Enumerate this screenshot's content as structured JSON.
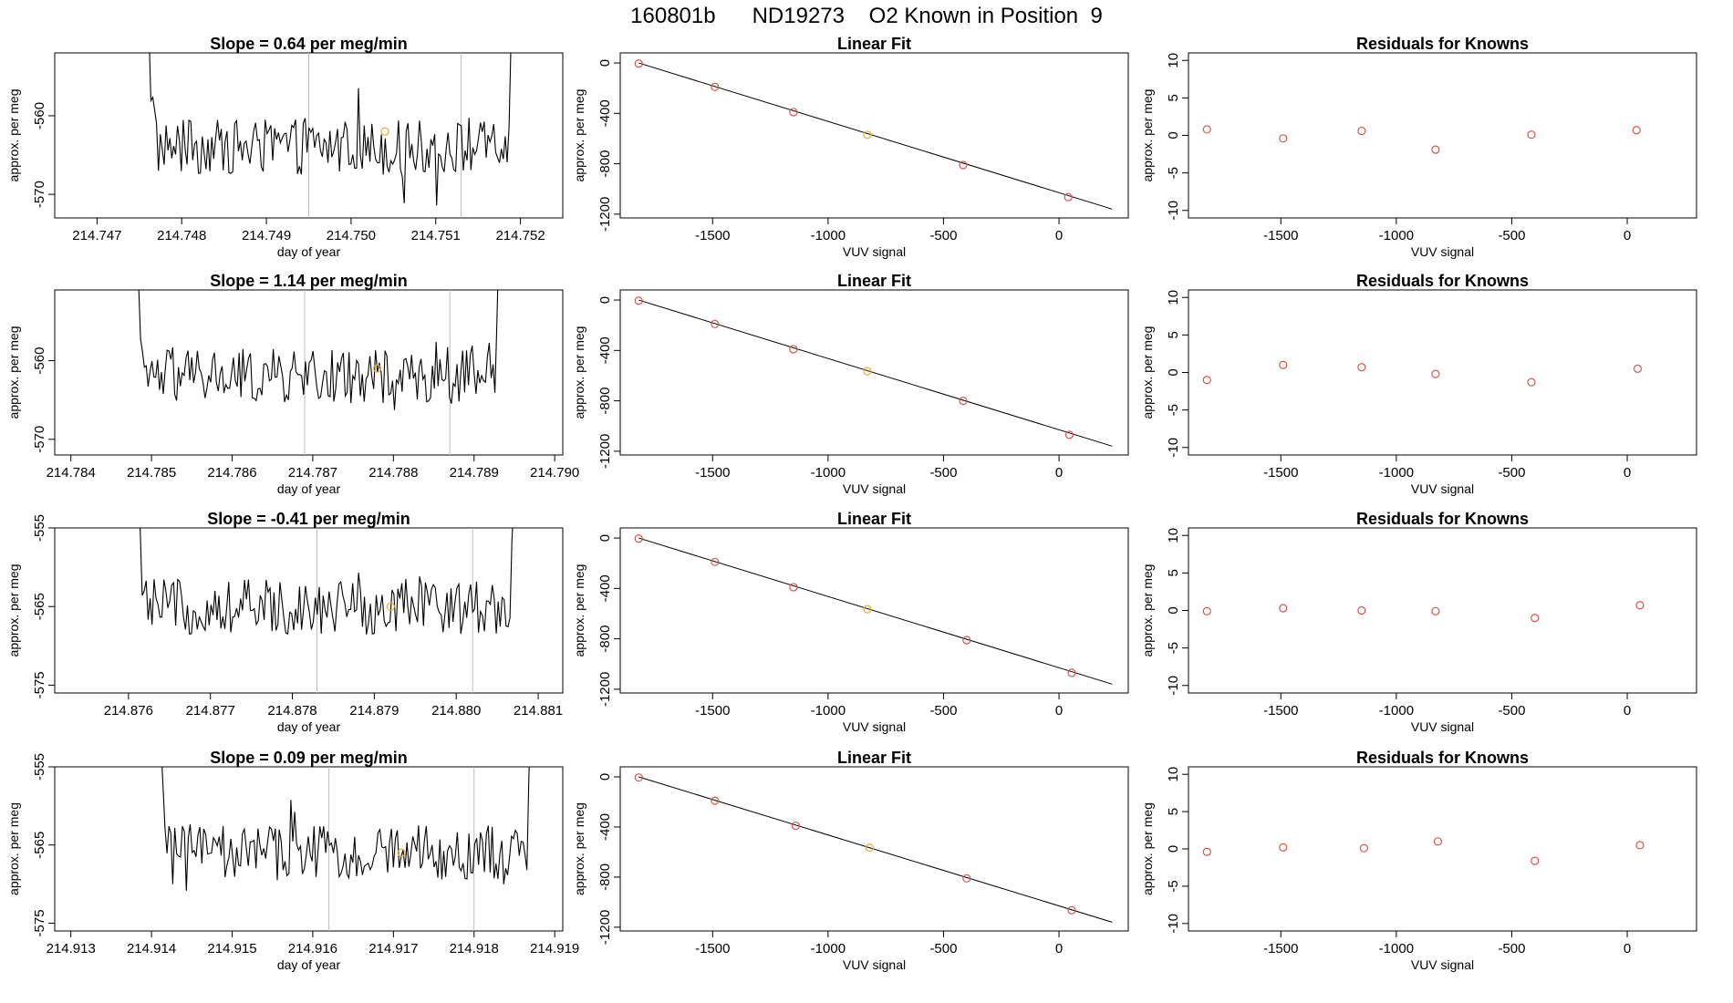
{
  "figure": {
    "title": "160801b      ND19273    O2 Known in Position  9",
    "colors": {
      "frame": "#000000",
      "line": "#000000",
      "point": "#d9534f",
      "highlight": "#f0a830",
      "vline": "#bdbdbd"
    }
  },
  "chart_data": [
    {
      "row": 0,
      "kind": "timeseries",
      "type": "line",
      "title": "Slope =  0.64  per meg/min",
      "xlabel": "day of year",
      "ylabel": "approx. per meg",
      "xlim": [
        214.7465,
        214.7525
      ],
      "ylim": [
        -573,
        -552
      ],
      "xticks": [
        214.747,
        214.748,
        214.749,
        214.75,
        214.751,
        214.752
      ],
      "xtick_labels": [
        "214.747",
        "214.748",
        "214.749",
        "214.750",
        "214.751",
        "214.752"
      ],
      "yticks": [
        -560,
        -570
      ],
      "ytick_labels": [
        "-560",
        "-570"
      ],
      "x_start": 214.7475,
      "x_end": 214.752,
      "center": -564,
      "vlines": [
        214.7495,
        214.7513
      ],
      "highlight_point": {
        "x": 214.7504,
        "y": -562
      }
    },
    {
      "row": 1,
      "kind": "timeseries",
      "type": "line",
      "title": "Slope =  1.14  per meg/min",
      "xlabel": "day of year",
      "ylabel": "approx. per meg",
      "xlim": [
        214.7838,
        214.7901
      ],
      "ylim": [
        -572,
        -551
      ],
      "xticks": [
        214.784,
        214.785,
        214.786,
        214.787,
        214.788,
        214.789,
        214.79
      ],
      "xtick_labels": [
        "214.784",
        "214.785",
        "214.786",
        "214.787",
        "214.788",
        "214.789",
        "214.790"
      ],
      "yticks": [
        -560,
        -570
      ],
      "ytick_labels": [
        "-560",
        "-570"
      ],
      "x_start": 214.7847,
      "x_end": 214.7894,
      "center": -562,
      "vlines": [
        214.7869,
        214.7887
      ],
      "highlight_point": {
        "x": 214.7878,
        "y": -561
      }
    },
    {
      "row": 2,
      "kind": "timeseries",
      "type": "line",
      "title": "Slope =  -0.41  per meg/min",
      "xlabel": "day of year",
      "ylabel": "approx. per meg",
      "xlim": [
        214.8751,
        214.8813
      ],
      "ylim": [
        -576,
        -555
      ],
      "xticks": [
        214.876,
        214.877,
        214.878,
        214.879,
        214.88,
        214.881
      ],
      "xtick_labels": [
        "214.876",
        "214.877",
        "214.878",
        "214.879",
        "214.880",
        "214.881"
      ],
      "yticks": [
        -555,
        -565,
        -575
      ],
      "ytick_labels": [
        "-555",
        "-565",
        "-575"
      ],
      "x_start": 214.876,
      "x_end": 214.8808,
      "center": -565,
      "vlines": [
        214.8783,
        214.8802
      ],
      "highlight_point": {
        "x": 214.8792,
        "y": -565
      }
    },
    {
      "row": 3,
      "kind": "timeseries",
      "type": "line",
      "title": "Slope =  0.09  per meg/min",
      "xlabel": "day of year",
      "ylabel": "approx. per meg",
      "xlim": [
        214.9128,
        214.9191
      ],
      "ylim": [
        -576,
        -555
      ],
      "xticks": [
        214.913,
        214.914,
        214.915,
        214.916,
        214.917,
        214.918,
        214.919
      ],
      "xtick_labels": [
        "214.913",
        "214.914",
        "214.915",
        "214.916",
        "214.917",
        "214.918",
        "214.919"
      ],
      "yticks": [
        -555,
        -565,
        -575
      ],
      "ytick_labels": [
        "-555",
        "-565",
        "-575"
      ],
      "x_start": 214.914,
      "x_end": 214.9188,
      "center": -566,
      "vlines": [
        214.9162,
        214.918
      ],
      "highlight_point": {
        "x": 214.9171,
        "y": -566
      }
    },
    {
      "row": 0,
      "kind": "fit",
      "type": "scatter",
      "title": "Linear Fit",
      "xlabel": "VUV signal",
      "ylabel": "approx. per meg",
      "xlim": [
        -1900,
        300
      ],
      "ylim": [
        -1230,
        80
      ],
      "xticks": [
        -1500,
        -1000,
        -500,
        0
      ],
      "xtick_labels": [
        "-1500",
        "-1000",
        "-500",
        "0"
      ],
      "yticks": [
        0,
        -400,
        -800,
        -1200
      ],
      "ytick_labels": [
        "0",
        "-400",
        "-800",
        "-1200"
      ],
      "fit_line": {
        "x": [
          -1820,
          230
        ],
        "y": [
          0,
          -1160
        ]
      },
      "points": [
        {
          "x": -1820,
          "y": -5
        },
        {
          "x": -1490,
          "y": -190
        },
        {
          "x": -1150,
          "y": -390
        },
        {
          "x": -830,
          "y": -570
        },
        {
          "x": -415,
          "y": -810
        },
        {
          "x": 40,
          "y": -1065
        }
      ],
      "highlight_index": 3
    },
    {
      "row": 1,
      "kind": "fit",
      "type": "scatter",
      "title": "Linear Fit",
      "xlabel": "VUV signal",
      "ylabel": "approx. per meg",
      "xlim": [
        -1900,
        300
      ],
      "ylim": [
        -1230,
        80
      ],
      "xticks": [
        -1500,
        -1000,
        -500,
        0
      ],
      "xtick_labels": [
        "-1500",
        "-1000",
        "-500",
        "0"
      ],
      "yticks": [
        0,
        -400,
        -800,
        -1200
      ],
      "ytick_labels": [
        "0",
        "-400",
        "-800",
        "-1200"
      ],
      "fit_line": {
        "x": [
          -1820,
          230
        ],
        "y": [
          0,
          -1160
        ]
      },
      "points": [
        {
          "x": -1820,
          "y": -5
        },
        {
          "x": -1490,
          "y": -190
        },
        {
          "x": -1150,
          "y": -390
        },
        {
          "x": -830,
          "y": -565
        },
        {
          "x": -415,
          "y": -800
        },
        {
          "x": 45,
          "y": -1070
        }
      ],
      "highlight_index": 3
    },
    {
      "row": 2,
      "kind": "fit",
      "type": "scatter",
      "title": "Linear Fit",
      "xlabel": "VUV signal",
      "ylabel": "approx. per meg",
      "xlim": [
        -1900,
        300
      ],
      "ylim": [
        -1230,
        80
      ],
      "xticks": [
        -1500,
        -1000,
        -500,
        0
      ],
      "xtick_labels": [
        "-1500",
        "-1000",
        "-500",
        "0"
      ],
      "yticks": [
        0,
        -400,
        -800,
        -1200
      ],
      "ytick_labels": [
        "0",
        "-400",
        "-800",
        "-1200"
      ],
      "fit_line": {
        "x": [
          -1820,
          230
        ],
        "y": [
          0,
          -1160
        ]
      },
      "points": [
        {
          "x": -1820,
          "y": -5
        },
        {
          "x": -1490,
          "y": -190
        },
        {
          "x": -1150,
          "y": -390
        },
        {
          "x": -830,
          "y": -565
        },
        {
          "x": -400,
          "y": -810
        },
        {
          "x": 55,
          "y": -1070
        }
      ],
      "highlight_index": 3
    },
    {
      "row": 3,
      "kind": "fit",
      "type": "scatter",
      "title": "Linear Fit",
      "xlabel": "VUV signal",
      "ylabel": "approx. per meg",
      "xlim": [
        -1900,
        300
      ],
      "ylim": [
        -1230,
        80
      ],
      "xticks": [
        -1500,
        -1000,
        -500,
        0
      ],
      "xtick_labels": [
        "-1500",
        "-1000",
        "-500",
        "0"
      ],
      "yticks": [
        0,
        -400,
        -800,
        -1200
      ],
      "ytick_labels": [
        "0",
        "-400",
        "-800",
        "-1200"
      ],
      "fit_line": {
        "x": [
          -1820,
          230
        ],
        "y": [
          0,
          -1160
        ]
      },
      "points": [
        {
          "x": -1820,
          "y": -5
        },
        {
          "x": -1490,
          "y": -190
        },
        {
          "x": -1140,
          "y": -390
        },
        {
          "x": -820,
          "y": -565
        },
        {
          "x": -400,
          "y": -810
        },
        {
          "x": 55,
          "y": -1065
        }
      ],
      "highlight_index": 3
    },
    {
      "row": 0,
      "kind": "residuals",
      "type": "scatter",
      "title": "Residuals for Knowns",
      "xlabel": "VUV signal",
      "ylabel": "approx. per meg",
      "xlim": [
        -1900,
        300
      ],
      "ylim": [
        -11,
        11
      ],
      "xticks": [
        -1500,
        -1000,
        -500,
        0
      ],
      "xtick_labels": [
        "-1500",
        "-1000",
        "-500",
        "0"
      ],
      "yticks": [
        10,
        5,
        0,
        -5,
        -10
      ],
      "ytick_labels": [
        "10",
        "5",
        "0",
        "-5",
        "-10"
      ],
      "points": [
        {
          "x": -1820,
          "y": 0.8
        },
        {
          "x": -1490,
          "y": -0.4
        },
        {
          "x": -1150,
          "y": 0.6
        },
        {
          "x": -830,
          "y": -1.9
        },
        {
          "x": -415,
          "y": 0.1
        },
        {
          "x": 40,
          "y": 0.7
        }
      ]
    },
    {
      "row": 1,
      "kind": "residuals",
      "type": "scatter",
      "title": "Residuals for Knowns",
      "xlabel": "VUV signal",
      "ylabel": "approx. per meg",
      "xlim": [
        -1900,
        300
      ],
      "ylim": [
        -11,
        11
      ],
      "xticks": [
        -1500,
        -1000,
        -500,
        0
      ],
      "xtick_labels": [
        "-1500",
        "-1000",
        "-500",
        "0"
      ],
      "yticks": [
        10,
        5,
        0,
        -5,
        -10
      ],
      "ytick_labels": [
        "10",
        "5",
        "0",
        "-5",
        "-10"
      ],
      "points": [
        {
          "x": -1820,
          "y": -1.0
        },
        {
          "x": -1490,
          "y": 1.0
        },
        {
          "x": -1150,
          "y": 0.7
        },
        {
          "x": -830,
          "y": -0.2
        },
        {
          "x": -415,
          "y": -1.3
        },
        {
          "x": 45,
          "y": 0.5
        }
      ]
    },
    {
      "row": 2,
      "kind": "residuals",
      "type": "scatter",
      "title": "Residuals for Knowns",
      "xlabel": "VUV signal",
      "ylabel": "approx. per meg",
      "xlim": [
        -1900,
        300
      ],
      "ylim": [
        -11,
        11
      ],
      "xticks": [
        -1500,
        -1000,
        -500,
        0
      ],
      "xtick_labels": [
        "-1500",
        "-1000",
        "-500",
        "0"
      ],
      "yticks": [
        10,
        5,
        0,
        -5,
        -10
      ],
      "ytick_labels": [
        "10",
        "5",
        "0",
        "-5",
        "-10"
      ],
      "points": [
        {
          "x": -1820,
          "y": -0.1
        },
        {
          "x": -1490,
          "y": 0.3
        },
        {
          "x": -1150,
          "y": 0.0
        },
        {
          "x": -830,
          "y": -0.1
        },
        {
          "x": -400,
          "y": -1.0
        },
        {
          "x": 55,
          "y": 0.7
        }
      ]
    },
    {
      "row": 3,
      "kind": "residuals",
      "type": "scatter",
      "title": "Residuals for Knowns",
      "xlabel": "VUV signal",
      "ylabel": "approx. per meg",
      "xlim": [
        -1900,
        300
      ],
      "ylim": [
        -11,
        11
      ],
      "xticks": [
        -1500,
        -1000,
        -500,
        0
      ],
      "xtick_labels": [
        "-1500",
        "-1000",
        "-500",
        "0"
      ],
      "yticks": [
        10,
        5,
        0,
        -5,
        -10
      ],
      "ytick_labels": [
        "10",
        "5",
        "0",
        "-5",
        "-10"
      ],
      "points": [
        {
          "x": -1820,
          "y": -0.4
        },
        {
          "x": -1490,
          "y": 0.2
        },
        {
          "x": -1140,
          "y": 0.1
        },
        {
          "x": -820,
          "y": 1.0
        },
        {
          "x": -400,
          "y": -1.6
        },
        {
          "x": 55,
          "y": 0.5
        }
      ]
    }
  ]
}
